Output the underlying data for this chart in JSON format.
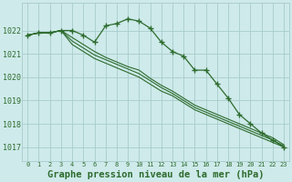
{
  "title": "Graphe pression niveau de la mer (hPa)",
  "background_color": "#ceeaea",
  "grid_color": "#a8cccc",
  "line_color": "#2d6b2d",
  "text_color": "#2d6b2d",
  "xlim": [
    -0.5,
    23.5
  ],
  "ylim": [
    1016.4,
    1023.2
  ],
  "yticks": [
    1017,
    1018,
    1019,
    1020,
    1021,
    1022
  ],
  "xticks": [
    0,
    1,
    2,
    3,
    4,
    5,
    6,
    7,
    8,
    9,
    10,
    11,
    12,
    13,
    14,
    15,
    16,
    17,
    18,
    19,
    20,
    21,
    22,
    23
  ],
  "series_main": [
    1021.8,
    1021.9,
    1021.9,
    1022.0,
    1022.0,
    1021.8,
    1021.5,
    1022.2,
    1022.3,
    1022.5,
    1022.4,
    1022.1,
    1021.5,
    1021.1,
    1020.9,
    1020.3,
    1020.3,
    1019.7,
    1019.1,
    1018.4,
    1018.0,
    1017.6,
    1017.3,
    1017.0
  ],
  "series_bg": [
    [
      1021.8,
      1021.9,
      1021.9,
      1022.0,
      1021.4,
      1021.1,
      1020.8,
      1020.6,
      1020.4,
      1020.2,
      1020.0,
      1019.7,
      1019.4,
      1019.2,
      1018.9,
      1018.6,
      1018.4,
      1018.2,
      1018.0,
      1017.8,
      1017.6,
      1017.4,
      1017.2,
      1017.0
    ],
    [
      1021.8,
      1021.9,
      1021.9,
      1022.0,
      1021.55,
      1021.25,
      1020.95,
      1020.75,
      1020.55,
      1020.35,
      1020.15,
      1019.85,
      1019.55,
      1019.3,
      1019.0,
      1018.7,
      1018.5,
      1018.3,
      1018.1,
      1017.9,
      1017.7,
      1017.5,
      1017.3,
      1017.05
    ],
    [
      1021.8,
      1021.9,
      1021.9,
      1022.0,
      1021.7,
      1021.4,
      1021.1,
      1020.85,
      1020.65,
      1020.45,
      1020.3,
      1019.95,
      1019.65,
      1019.4,
      1019.1,
      1018.8,
      1018.6,
      1018.4,
      1018.2,
      1018.0,
      1017.8,
      1017.6,
      1017.4,
      1017.1
    ]
  ]
}
